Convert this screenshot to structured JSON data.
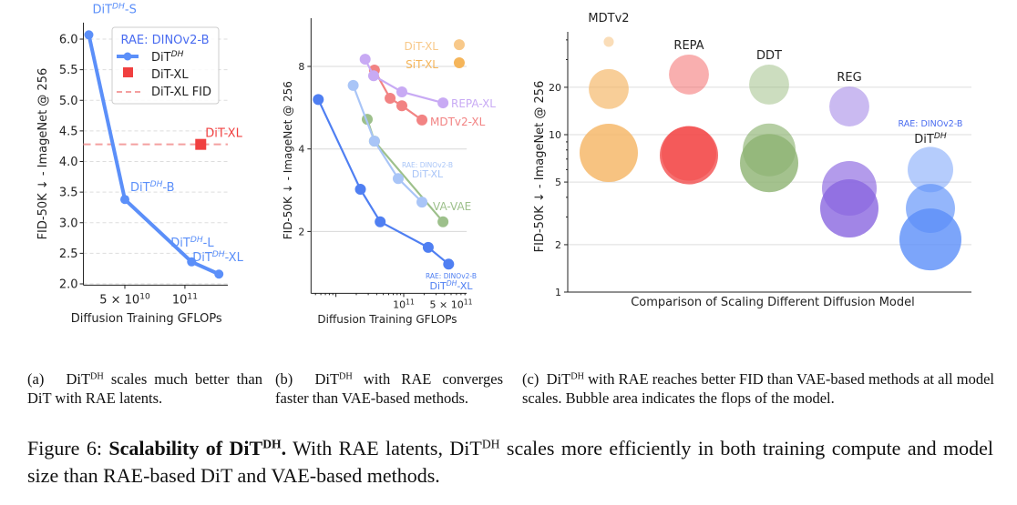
{
  "chart_data": [
    {
      "type": "line",
      "panel": "(a)",
      "xlabel": "Diffusion Training GFLOPs",
      "ylabel": "FID-50K ↓ - ImageNet @ 256",
      "x_scale": "log",
      "xlim": [
        31000000000.0,
        164000000000.0
      ],
      "ylim": [
        1.98,
        6.27
      ],
      "x_ticks": [
        {
          "value": 50000000000.0,
          "base": "5 × 10",
          "exp": "10"
        },
        {
          "value": 100000000000.0,
          "base": "10",
          "exp": "11"
        }
      ],
      "y_ticks": [
        2.0,
        2.5,
        3.0,
        3.5,
        4.0,
        4.5,
        5.0,
        5.5,
        6.0
      ],
      "y_tick_labels": [
        "2.0",
        "2.5",
        "3.0",
        "3.5",
        "4.0",
        "4.5",
        "5.0",
        "5.5",
        "6.0"
      ],
      "grid": "horizontal dashed",
      "legend": {
        "position": "top-right",
        "title": "RAE: DINOv2-B",
        "entries": [
          "DiT",
          "DiT-XL",
          "DiT-XL FID"
        ],
        "entry_sup": [
          "DH",
          "",
          ""
        ]
      },
      "series": [
        {
          "name": "DiT^DH",
          "color": "#5b8ff9",
          "points": [
            {
              "x": 33000000000.0,
              "y": 6.07,
              "label": "DiT",
              "sup": "DH",
              "suffix": "-S"
            },
            {
              "x": 50000000000.0,
              "y": 3.38,
              "label": "DiT",
              "sup": "DH",
              "suffix": "-B"
            },
            {
              "x": 108000000000.0,
              "y": 2.36,
              "label": "DiT",
              "sup": "DH",
              "suffix": "-L"
            },
            {
              "x": 148000000000.0,
              "y": 2.16,
              "label": "DiT",
              "sup": "DH",
              "suffix": "-XL"
            }
          ]
        },
        {
          "name": "DiT-XL",
          "color": "#f04040",
          "marker": "square",
          "points": [
            {
              "x": 120000000000.0,
              "y": 4.28,
              "label": "DiT-XL"
            }
          ]
        }
      ],
      "hline": {
        "name": "DiT-XL FID",
        "y": 4.28,
        "color": "#f4a0a0"
      }
    },
    {
      "type": "line",
      "panel": "(b)",
      "xlabel": "Diffusion Training GFLOPs",
      "ylabel": "FID-50K ↓ - ImageNet @ 256",
      "x_scale": "log",
      "y_scale": "log",
      "xlim": [
        4300000000.0,
        850000000000.0
      ],
      "ylim": [
        1.19,
        12
      ],
      "x_ticks": [
        {
          "value": 100000000000.0,
          "base": "10",
          "exp": "11"
        },
        {
          "value": 500000000000.0,
          "base": "5 × 10",
          "exp": "11"
        }
      ],
      "y_ticks": [
        2,
        4,
        8
      ],
      "y_tick_labels": [
        "2",
        "4",
        "8"
      ],
      "grid": "horizontal",
      "series": [
        {
          "name": "DiT-XL",
          "sup": "DH",
          "note": "RAE: DINOv2-B",
          "label_prefix": "DiT",
          "label_suffix": "-XL",
          "color": "#4f7ff2",
          "x": [
            5500000000.0,
            23000000000.0,
            45000000000.0,
            230000000000.0,
            460000000000.0
          ],
          "y": [
            6.06,
            2.85,
            2.17,
            1.75,
            1.52
          ]
        },
        {
          "name": "DiT-XL",
          "note": "RAE: DINOv2-B",
          "color": "#a9c5f7",
          "x": [
            18000000000.0,
            37000000000.0,
            83000000000.0,
            186000000000.0
          ],
          "y": [
            6.82,
            4.27,
            3.12,
            2.56
          ]
        },
        {
          "name": "VA-VAE",
          "color": "#9dc08b",
          "x": [
            29000000000.0,
            37000000000.0,
            380000000000.0
          ],
          "y": [
            5.13,
            4.27,
            2.17
          ]
        },
        {
          "name": "REPA-XL",
          "color": "#c8aaf4",
          "x": [
            27000000000.0,
            36000000000.0,
            94000000000.0,
            380000000000.0
          ],
          "y": [
            8.5,
            7.4,
            6.46,
            5.89
          ]
        },
        {
          "name": "MDTv2-XL",
          "color": "#f28383",
          "x": [
            37000000000.0,
            63000000000.0,
            94000000000.0,
            186000000000.0
          ],
          "y": [
            7.76,
            6.12,
            5.75,
            5.1
          ]
        },
        {
          "name": "DiT-XL",
          "color": "#f8c98a",
          "marker_only": true,
          "x": [
            660000000000.0
          ],
          "y": [
            9.6
          ]
        },
        {
          "name": "SiT-XL",
          "color": "#f5b55a",
          "marker_only": true,
          "x": [
            660000000000.0
          ],
          "y": [
            8.25
          ]
        }
      ]
    },
    {
      "type": "bubble",
      "panel": "(c)",
      "xlabel": "Comparison of Scaling Different Diffusion Model",
      "ylabel": "FID-50K ↓ - ImageNet @ 256",
      "y_scale": "log",
      "ylim": [
        1,
        45
      ],
      "y_ticks": [
        1,
        2,
        5,
        10,
        20
      ],
      "y_tick_labels": [
        "1",
        "2",
        "5",
        "10",
        "20"
      ],
      "grid": "horizontal",
      "groups": [
        {
          "name": "MDTv2",
          "color": "#f5b461",
          "bubbles": [
            {
              "fid": 38.9,
              "relative_area": 0.03
            },
            {
              "fid": 19.5,
              "relative_area": 0.47
            },
            {
              "fid": 7.66,
              "relative_area": 1.0
            }
          ]
        },
        {
          "name": "REPA",
          "color": "#f24d4d",
          "bubbles": [
            {
              "fid": 24.1,
              "relative_area": 0.47
            },
            {
              "fid": 7.6,
              "relative_area": 0.88
            },
            {
              "fid": 7.4,
              "relative_area": 1.0
            }
          ]
        },
        {
          "name": "DDT",
          "color": "#8db372",
          "bubbles": [
            {
              "fid": 20.8,
              "relative_area": 0.47
            },
            {
              "fid": 8.0,
              "relative_area": 0.82
            },
            {
              "fid": 6.6,
              "relative_area": 1.0
            }
          ]
        },
        {
          "name": "REG",
          "color": "#8a66e0",
          "bubbles": [
            {
              "fid": 15.1,
              "relative_area": 0.47
            },
            {
              "fid": 4.56,
              "relative_area": 0.88
            },
            {
              "fid": 3.4,
              "relative_area": 1.0
            }
          ]
        },
        {
          "name": "DiT",
          "sup": "DH",
          "note": "RAE: DINOv2-B",
          "color": "#5b8ff9",
          "bubbles": [
            {
              "fid": 6.0,
              "relative_area": 0.61
            },
            {
              "fid": 3.4,
              "relative_area": 0.71
            },
            {
              "fid": 2.16,
              "relative_area": 1.13
            }
          ]
        }
      ]
    }
  ],
  "captions": {
    "a": {
      "tag": "(a)",
      "pre": "DiT",
      "sup": "DH",
      "post": " scales much better than DiT with RAE latents."
    },
    "b": {
      "tag": "(b)",
      "pre": "DiT",
      "sup": "DH",
      "post": " with RAE converges faster than VAE-based methods."
    },
    "c": {
      "tag": "(c)",
      "pre": "DiT",
      "sup": "DH",
      "post": " with RAE reaches better FID than VAE-based methods at all model scales. Bubble area indicates the flops of the model."
    },
    "figure": {
      "label": "Figure 6: ",
      "bold": "Scalability of DiT",
      "bold_sup": "DH",
      "bold_end": ".",
      "pre": " With RAE latents, DiT",
      "sup": "DH",
      "post": " scales more efficiently in both training compute and model size than RAE-based DiT and VAE-based methods."
    }
  }
}
